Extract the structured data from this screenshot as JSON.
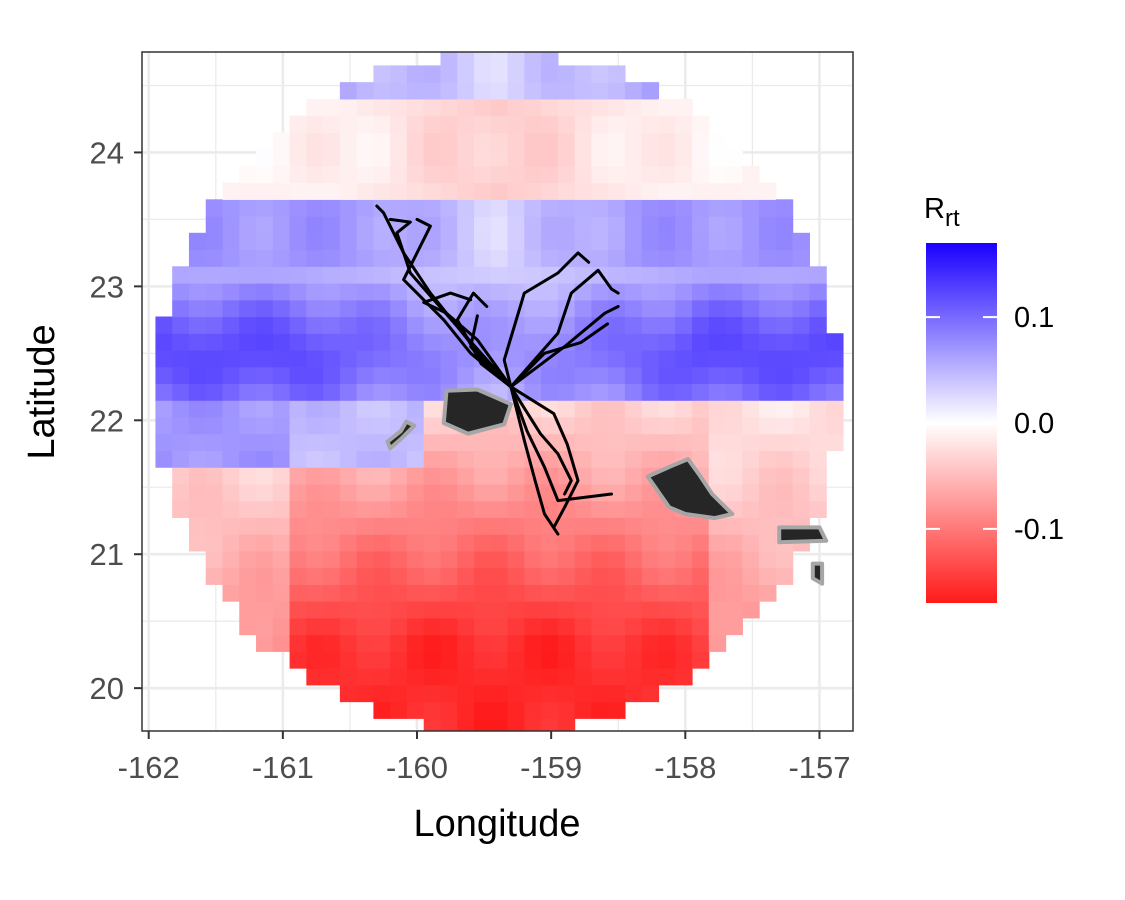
{
  "chart_data": {
    "type": "heatmap",
    "title": "",
    "xlabel": "Longitude",
    "ylabel": "Latitude",
    "xlim": [
      -162.05,
      -156.75
    ],
    "ylim": [
      19.68,
      24.75
    ],
    "x_ticks": [
      -162,
      -161,
      -160,
      -159,
      -158,
      -157
    ],
    "x_tick_labels": [
      "-162",
      "-161",
      "-160",
      "-159",
      "-158",
      "-157"
    ],
    "y_ticks": [
      20,
      21,
      22,
      23,
      24
    ],
    "y_tick_labels": [
      "20",
      "21",
      "22",
      "23",
      "24"
    ],
    "grid": true,
    "center": {
      "lon": -159.4,
      "lat": 22.2
    },
    "radius_deg": 2.55,
    "cell_deg": 0.125,
    "value_range": [
      -0.17,
      0.17
    ],
    "legend": {
      "title_main": "R",
      "title_sub": "rt",
      "position": "right",
      "ticks": [
        0.1,
        0.0,
        -0.1
      ],
      "tick_labels": [
        "0.1",
        "0.0",
        "-0.1"
      ],
      "colors": {
        "low": "#ff1a1a",
        "mid": "#ffffff",
        "high": "#1a00ff"
      }
    },
    "islands": [
      {
        "name_hint": "kauai",
        "points": [
          [
            -159.78,
            22.22
          ],
          [
            -159.55,
            22.23
          ],
          [
            -159.3,
            22.12
          ],
          [
            -159.35,
            21.97
          ],
          [
            -159.62,
            21.9
          ],
          [
            -159.8,
            21.98
          ],
          [
            -159.78,
            22.22
          ]
        ]
      },
      {
        "name_hint": "niihau",
        "points": [
          [
            -160.08,
            21.99
          ],
          [
            -160.02,
            21.96
          ],
          [
            -160.12,
            21.86
          ],
          [
            -160.2,
            21.79
          ],
          [
            -160.22,
            21.84
          ],
          [
            -160.12,
            21.92
          ],
          [
            -160.08,
            21.99
          ]
        ]
      },
      {
        "name_hint": "oahu",
        "points": [
          [
            -158.28,
            21.58
          ],
          [
            -158.1,
            21.66
          ],
          [
            -157.98,
            21.71
          ],
          [
            -157.9,
            21.6
          ],
          [
            -157.8,
            21.45
          ],
          [
            -157.65,
            21.3
          ],
          [
            -157.78,
            21.27
          ],
          [
            -158.0,
            21.3
          ],
          [
            -158.12,
            21.35
          ],
          [
            -158.28,
            21.58
          ]
        ]
      },
      {
        "name_hint": "molokai",
        "points": [
          [
            -157.3,
            21.2
          ],
          [
            -157.0,
            21.2
          ],
          [
            -156.95,
            21.1
          ],
          [
            -157.3,
            21.09
          ],
          [
            -157.3,
            21.2
          ]
        ]
      },
      {
        "name_hint": "molokai-lanai",
        "points": [
          [
            -157.05,
            20.93
          ],
          [
            -156.98,
            20.93
          ],
          [
            -156.98,
            20.78
          ],
          [
            -157.05,
            20.82
          ],
          [
            -157.05,
            20.93
          ]
        ]
      }
    ],
    "tracks": [
      [
        [
          -159.3,
          22.25
        ],
        [
          -159.58,
          22.55
        ],
        [
          -159.9,
          22.95
        ],
        [
          -160.1,
          23.25
        ],
        [
          -160.25,
          23.55
        ],
        [
          -160.3,
          23.6
        ]
      ],
      [
        [
          -159.3,
          22.25
        ],
        [
          -159.7,
          22.7
        ],
        [
          -160.05,
          23.1
        ],
        [
          -160.15,
          23.4
        ],
        [
          -160.05,
          23.48
        ],
        [
          -160.2,
          23.5
        ]
      ],
      [
        [
          -159.3,
          22.25
        ],
        [
          -159.6,
          22.5
        ],
        [
          -159.8,
          22.75
        ],
        [
          -160.1,
          23.05
        ],
        [
          -159.9,
          23.45
        ],
        [
          -160.0,
          23.5
        ]
      ],
      [
        [
          -159.3,
          22.25
        ],
        [
          -159.55,
          22.6
        ],
        [
          -159.78,
          22.8
        ],
        [
          -159.95,
          22.88
        ],
        [
          -159.75,
          22.95
        ],
        [
          -159.6,
          22.9
        ]
      ],
      [
        [
          -159.3,
          22.25
        ],
        [
          -159.52,
          22.42
        ],
        [
          -159.7,
          22.75
        ],
        [
          -159.58,
          22.95
        ],
        [
          -159.48,
          22.85
        ]
      ],
      [
        [
          -159.3,
          22.25
        ],
        [
          -159.45,
          22.38
        ],
        [
          -159.6,
          22.55
        ],
        [
          -159.55,
          22.78
        ]
      ],
      [
        [
          -159.3,
          22.25
        ],
        [
          -159.35,
          22.45
        ],
        [
          -159.2,
          22.95
        ],
        [
          -158.95,
          23.1
        ],
        [
          -158.8,
          23.25
        ],
        [
          -158.72,
          23.18
        ]
      ],
      [
        [
          -159.3,
          22.25
        ],
        [
          -158.95,
          22.65
        ],
        [
          -158.85,
          22.95
        ],
        [
          -158.65,
          23.12
        ],
        [
          -158.55,
          22.98
        ],
        [
          -158.5,
          22.95
        ]
      ],
      [
        [
          -159.3,
          22.25
        ],
        [
          -158.9,
          22.55
        ],
        [
          -158.6,
          22.8
        ],
        [
          -158.5,
          22.85
        ]
      ],
      [
        [
          -159.3,
          22.25
        ],
        [
          -159.05,
          22.5
        ],
        [
          -158.78,
          22.58
        ],
        [
          -158.58,
          22.72
        ]
      ],
      [
        [
          -159.3,
          22.25
        ],
        [
          -159.18,
          21.92
        ],
        [
          -159.05,
          21.65
        ],
        [
          -158.95,
          21.4
        ],
        [
          -158.55,
          21.45
        ]
      ],
      [
        [
          -159.3,
          22.25
        ],
        [
          -159.2,
          21.85
        ],
        [
          -159.12,
          21.55
        ],
        [
          -159.05,
          21.3
        ],
        [
          -158.95,
          21.15
        ]
      ],
      [
        [
          -159.3,
          22.25
        ],
        [
          -159.08,
          21.9
        ],
        [
          -158.95,
          21.75
        ],
        [
          -158.85,
          21.55
        ],
        [
          -158.9,
          21.45
        ]
      ],
      [
        [
          -159.3,
          22.25
        ],
        [
          -158.98,
          22.05
        ],
        [
          -158.88,
          21.82
        ],
        [
          -158.8,
          21.55
        ],
        [
          -158.9,
          21.35
        ],
        [
          -158.98,
          21.2
        ]
      ]
    ]
  }
}
